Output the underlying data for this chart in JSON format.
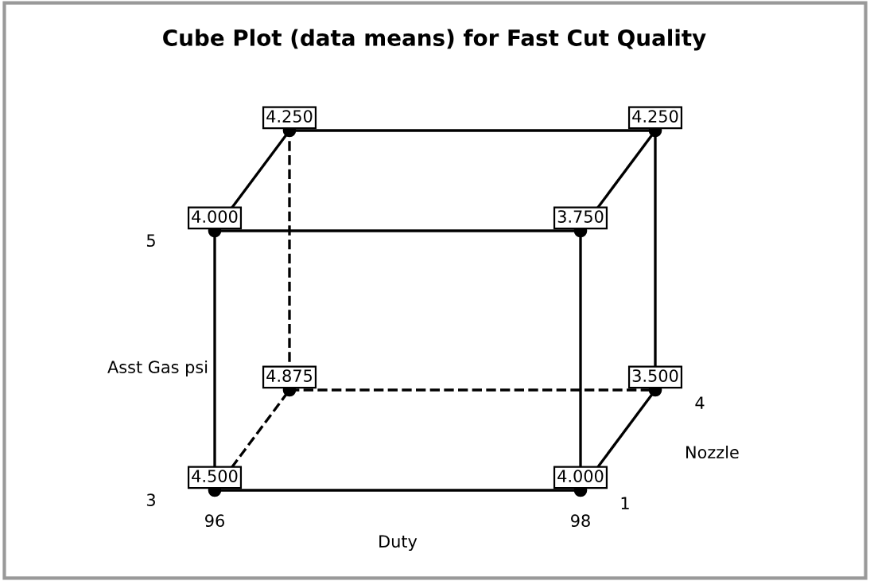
{
  "chart_data": {
    "type": "other",
    "title": "Cube Plot (data means) for Fast Cut Quality",
    "xlabel": "Duty",
    "ylabel": "Asst Gas psi",
    "y2label": "Nozzle",
    "categories": [
      "96",
      "98"
    ],
    "annotations": [
      "3",
      "5",
      "1",
      "4"
    ],
    "series": [
      {
        "values": [
          4.5,
          4.0
        ],
        "value_labels": [
          "4.500",
          "4.000"
        ]
      },
      {
        "values": [
          4.0,
          3.75
        ],
        "value_labels": [
          "4.000",
          "3.750"
        ]
      },
      {
        "values": [
          4.875,
          3.5
        ],
        "value_labels": [
          "4.875",
          "3.500"
        ]
      },
      {
        "values": [
          4.25,
          4.25
        ],
        "value_labels": [
          "4.250",
          "4.250"
        ]
      }
    ]
  }
}
